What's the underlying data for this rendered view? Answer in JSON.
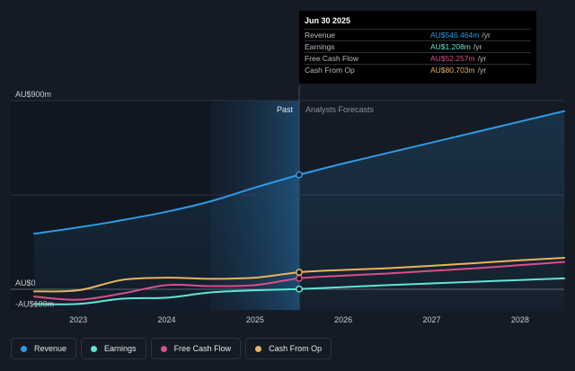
{
  "colors": {
    "background": "#151b24",
    "revenue": "#2d9be6",
    "earnings": "#5ee6d6",
    "free_cash_flow": "#d94f8a",
    "cash_from_op": "#e8b45c"
  },
  "tooltip": {
    "date": "Jun 30 2025",
    "rows": [
      {
        "label": "Revenue",
        "value": "AU$546.464m",
        "unit": "/yr",
        "color": "#2d9be6"
      },
      {
        "label": "Earnings",
        "value": "AU$1.208m",
        "unit": "/yr",
        "color": "#5ee6d6"
      },
      {
        "label": "Free Cash Flow",
        "value": "AU$52.257m",
        "unit": "/yr",
        "color": "#d94f8a"
      },
      {
        "label": "Cash From Op",
        "value": "AU$80.703m",
        "unit": "/yr",
        "color": "#e8b45c"
      }
    ]
  },
  "chart_data": {
    "type": "line",
    "y_tick_labels": [
      "AU$900m",
      "AU$0",
      "-AU$100m"
    ],
    "x_tick_labels": [
      "2023",
      "2024",
      "2025",
      "2026",
      "2027",
      "2028"
    ],
    "past_label": "Past",
    "forecast_label": "Analysts Forecasts",
    "divider_x": 2025.5,
    "highlight_x_start": 2024.5,
    "xlim": [
      2022.5,
      2028.5
    ],
    "ylim": [
      -100,
      900
    ],
    "grid": true,
    "series": [
      {
        "name": "Revenue",
        "color": "#2d9be6",
        "area": true,
        "points": [
          [
            2022.5,
            265
          ],
          [
            2023.0,
            295
          ],
          [
            2023.5,
            330
          ],
          [
            2024.0,
            370
          ],
          [
            2024.5,
            420
          ],
          [
            2025.0,
            485
          ],
          [
            2025.5,
            546
          ],
          [
            2026.0,
            600
          ],
          [
            2026.5,
            650
          ],
          [
            2027.0,
            700
          ],
          [
            2027.5,
            750
          ],
          [
            2028.0,
            800
          ],
          [
            2028.5,
            850
          ]
        ]
      },
      {
        "name": "Earnings",
        "color": "#5ee6d6",
        "points": [
          [
            2022.5,
            -70
          ],
          [
            2023.0,
            -70
          ],
          [
            2023.5,
            -45
          ],
          [
            2024.0,
            -40
          ],
          [
            2024.5,
            -15
          ],
          [
            2025.0,
            -5
          ],
          [
            2025.5,
            1
          ],
          [
            2026.0,
            10
          ],
          [
            2026.5,
            20
          ],
          [
            2027.0,
            28
          ],
          [
            2027.5,
            36
          ],
          [
            2028.0,
            44
          ],
          [
            2028.5,
            52
          ]
        ]
      },
      {
        "name": "Free Cash Flow",
        "color": "#d94f8a",
        "points": [
          [
            2022.5,
            -35
          ],
          [
            2023.0,
            -50
          ],
          [
            2023.5,
            -20
          ],
          [
            2024.0,
            20
          ],
          [
            2024.5,
            15
          ],
          [
            2025.0,
            20
          ],
          [
            2025.5,
            52
          ],
          [
            2026.0,
            65
          ],
          [
            2026.5,
            75
          ],
          [
            2027.0,
            88
          ],
          [
            2027.5,
            100
          ],
          [
            2028.0,
            115
          ],
          [
            2028.5,
            130
          ]
        ]
      },
      {
        "name": "Cash From Op",
        "color": "#e8b45c",
        "points": [
          [
            2022.5,
            -10
          ],
          [
            2023.0,
            -5
          ],
          [
            2023.5,
            45
          ],
          [
            2024.0,
            55
          ],
          [
            2024.5,
            50
          ],
          [
            2025.0,
            55
          ],
          [
            2025.5,
            81
          ],
          [
            2026.0,
            92
          ],
          [
            2026.5,
            100
          ],
          [
            2027.0,
            112
          ],
          [
            2027.5,
            125
          ],
          [
            2028.0,
            138
          ],
          [
            2028.5,
            150
          ]
        ]
      }
    ],
    "highlight_markers_at": 2025.5
  },
  "legend": [
    {
      "label": "Revenue",
      "color": "#2d9be6"
    },
    {
      "label": "Earnings",
      "color": "#5ee6d6"
    },
    {
      "label": "Free Cash Flow",
      "color": "#d94f8a"
    },
    {
      "label": "Cash From Op",
      "color": "#e8b45c"
    }
  ]
}
